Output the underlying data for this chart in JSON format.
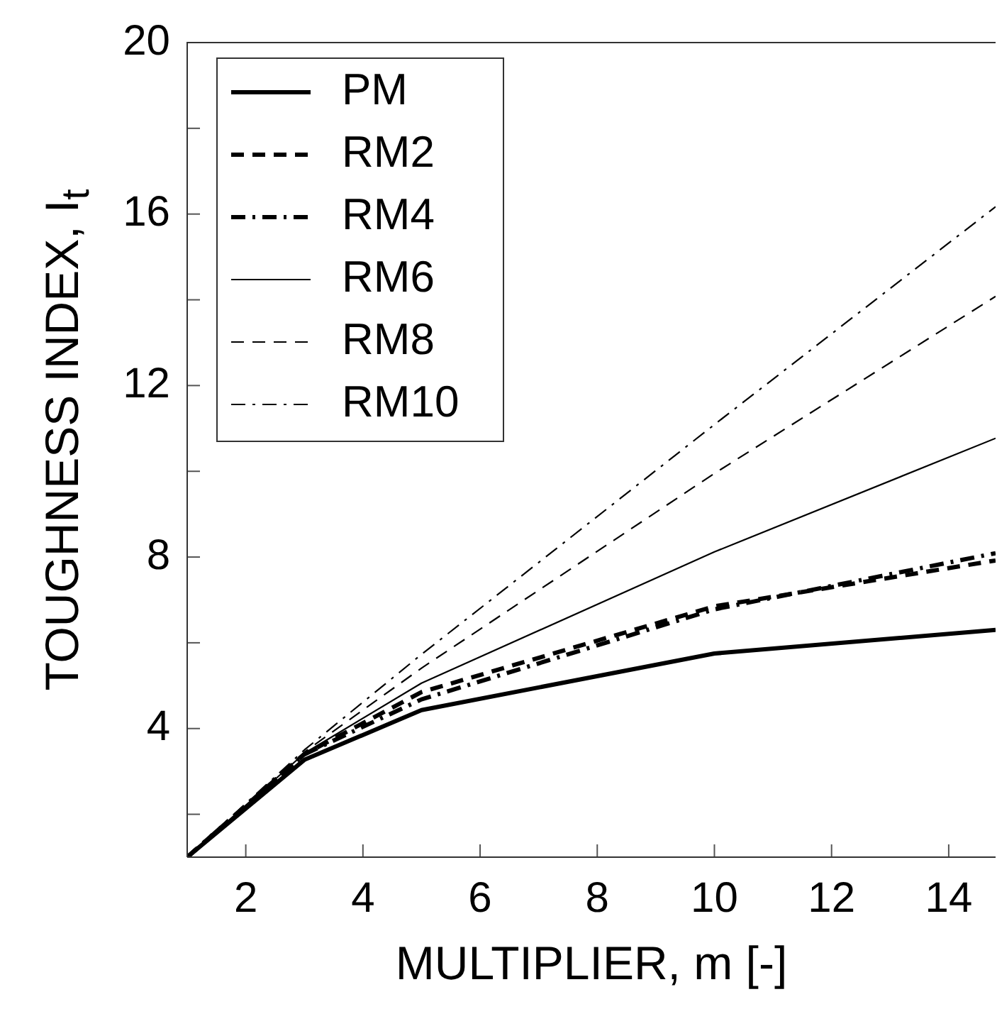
{
  "chart_data": {
    "type": "line",
    "xlabel": "MULTIPLIER, m [-]",
    "ylabel": "TOUGHNESS INDEX, I$_{t}$",
    "x": [
      1,
      3,
      5,
      10,
      14.8
    ],
    "xlim": [
      1,
      14.8
    ],
    "xticks": [
      2,
      4,
      6,
      8,
      10,
      12,
      14
    ],
    "ylim": [
      1,
      20
    ],
    "yticks": [
      {
        "value": 2,
        "label": null
      },
      4,
      {
        "value": 6,
        "label": null
      },
      8,
      {
        "value": 10,
        "label": null
      },
      12,
      {
        "value": 14,
        "label": null
      },
      16,
      {
        "value": 18,
        "label": null
      },
      20
    ],
    "grid": false,
    "legend": "top left",
    "marker": "none",
    "series": [
      {
        "name": "PM",
        "color": "#000000",
        "line_style": "solid",
        "values": [
          1,
          3.27,
          4.43,
          5.75,
          6.3
        ]
      },
      {
        "name": "RM2",
        "color": "#000000",
        "line_style": "dashed",
        "values": [
          1,
          3.4,
          4.85,
          6.85,
          7.92
        ]
      },
      {
        "name": "RM4",
        "color": "#000000",
        "line_style": "dashdot",
        "values": [
          1,
          3.4,
          4.68,
          6.78,
          8.09
        ]
      },
      {
        "name": "RM6",
        "color": "#000000",
        "line_style": "solid",
        "values": [
          1,
          3.42,
          5.06,
          8.12,
          10.77
        ]
      },
      {
        "name": "RM8",
        "color": "#000000",
        "line_style": "dashed",
        "values": [
          1,
          3.45,
          5.41,
          9.95,
          14.08
        ]
      },
      {
        "name": "RM10",
        "color": "#000000",
        "line_style": "dashdot",
        "values": [
          1,
          3.5,
          5.73,
          11.09,
          16.17
        ]
      }
    ]
  }
}
